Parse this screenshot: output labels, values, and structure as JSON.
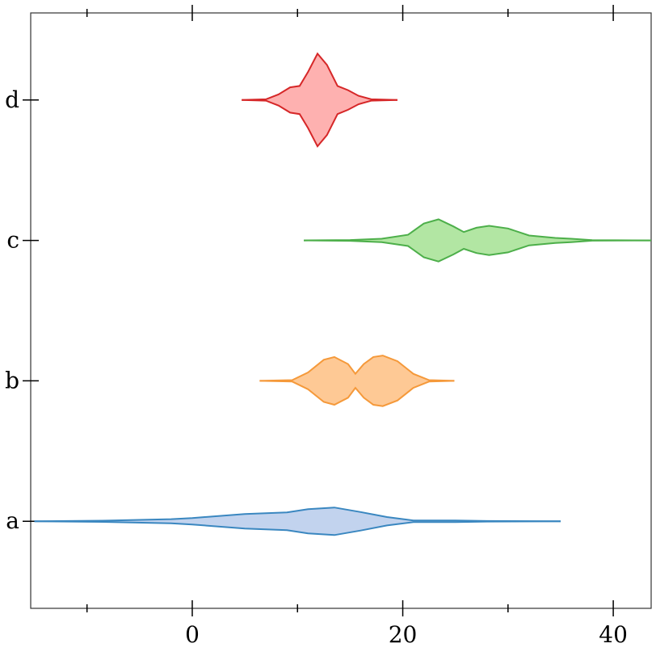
{
  "chart_data": {
    "type": "violin",
    "orientation": "horizontal",
    "categories": [
      "a",
      "b",
      "c",
      "d"
    ],
    "xlim": [
      -15.35,
      43.6
    ],
    "ylim": [
      -0.62,
      3.62
    ],
    "xticks": [
      0,
      20,
      40
    ],
    "xminorticks": [
      -10,
      10,
      30
    ],
    "violins": [
      {
        "color": "#3a87c0",
        "fill": "#c2d3ee",
        "x": [
          -15,
          -8,
          -2,
          0,
          5,
          9,
          11,
          13.5,
          16,
          18.5,
          21,
          25,
          28,
          35
        ],
        "widths": [
          0,
          0.005,
          0.015,
          0.023,
          0.052,
          0.063,
          0.086,
          0.098,
          0.066,
          0.03,
          0.006,
          0.006,
          0.002,
          0
        ]
      },
      {
        "color": "#f5993a",
        "fill": "#fec995",
        "x": [
          6.4,
          9.5,
          11,
          12.5,
          13.5,
          14.8,
          15.5,
          16.3,
          17.2,
          18.1,
          19.5,
          21,
          22.5,
          24.9
        ],
        "widths": [
          0,
          0.005,
          0.06,
          0.15,
          0.17,
          0.12,
          0.05,
          0.12,
          0.17,
          0.18,
          0.14,
          0.05,
          0.005,
          0
        ]
      },
      {
        "color": "#4daf4a",
        "fill": "#b2e6a3",
        "x": [
          10.6,
          15,
          18,
          20.5,
          22,
          23.4,
          24.8,
          25.8,
          27,
          28.2,
          30,
          32,
          34.5,
          36,
          38,
          43.6
        ],
        "widths": [
          0,
          0.003,
          0.012,
          0.04,
          0.12,
          0.15,
          0.1,
          0.06,
          0.09,
          0.104,
          0.085,
          0.035,
          0.018,
          0.012,
          0.002,
          0
        ]
      },
      {
        "color": "#d62728",
        "fill": "#feb1b0",
        "x": [
          4.7,
          7,
          8.2,
          9.3,
          10.2,
          11,
          11.9,
          12.8,
          13.8,
          14.8,
          15.8,
          17,
          19.5
        ],
        "widths": [
          0,
          0.005,
          0.04,
          0.09,
          0.1,
          0.2,
          0.33,
          0.25,
          0.1,
          0.07,
          0.03,
          0.005,
          0
        ]
      }
    ]
  }
}
